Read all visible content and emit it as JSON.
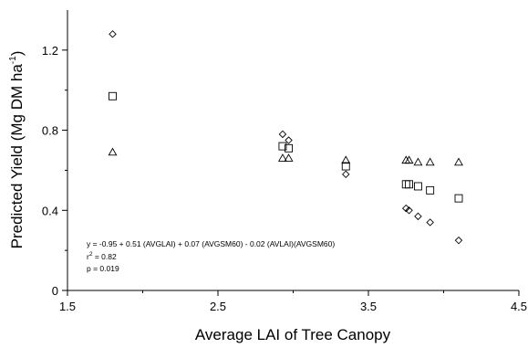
{
  "chart_data": {
    "type": "scatter",
    "title": "",
    "xlabel": "Average LAI of Tree Canopy",
    "ylabel_main": "Predicted Yield (Mg DM ha",
    "ylabel_sup": "-1",
    "ylabel_end": ")",
    "xlim": [
      1.5,
      4.5
    ],
    "ylim": [
      0,
      1.4
    ],
    "xticks": [
      1.5,
      2.5,
      3.5,
      4.5
    ],
    "xtick_labels": [
      "1.5",
      "2.5",
      "3.5",
      "4.5"
    ],
    "xminor": [
      2.0,
      3.0,
      4.0
    ],
    "yticks": [
      0,
      0.4,
      0.8,
      1.2
    ],
    "ytick_labels": [
      "0",
      "0.4",
      "0.8",
      "1.2"
    ],
    "yminor": [
      0.2,
      0.6,
      1.0
    ],
    "grid": false,
    "legend": "none",
    "series": [
      {
        "marker": "diamond",
        "points": [
          {
            "x": 1.8,
            "y": 1.28
          },
          {
            "x": 2.93,
            "y": 0.78
          },
          {
            "x": 2.97,
            "y": 0.75
          },
          {
            "x": 3.35,
            "y": 0.58
          },
          {
            "x": 3.75,
            "y": 0.41
          },
          {
            "x": 3.77,
            "y": 0.4
          },
          {
            "x": 3.83,
            "y": 0.37
          },
          {
            "x": 3.91,
            "y": 0.34
          },
          {
            "x": 4.1,
            "y": 0.25
          }
        ]
      },
      {
        "marker": "square",
        "points": [
          {
            "x": 1.8,
            "y": 0.97
          },
          {
            "x": 2.93,
            "y": 0.72
          },
          {
            "x": 2.97,
            "y": 0.71
          },
          {
            "x": 3.35,
            "y": 0.62
          },
          {
            "x": 3.75,
            "y": 0.53
          },
          {
            "x": 3.77,
            "y": 0.53
          },
          {
            "x": 3.83,
            "y": 0.52
          },
          {
            "x": 3.91,
            "y": 0.5
          },
          {
            "x": 4.1,
            "y": 0.46
          }
        ]
      },
      {
        "marker": "triangle",
        "points": [
          {
            "x": 1.8,
            "y": 0.69
          },
          {
            "x": 2.93,
            "y": 0.66
          },
          {
            "x": 2.97,
            "y": 0.66
          },
          {
            "x": 3.35,
            "y": 0.65
          },
          {
            "x": 3.75,
            "y": 0.65
          },
          {
            "x": 3.77,
            "y": 0.65
          },
          {
            "x": 3.83,
            "y": 0.64
          },
          {
            "x": 3.91,
            "y": 0.64
          },
          {
            "x": 4.1,
            "y": 0.64
          }
        ]
      }
    ],
    "annotations": {
      "equation": "y = -0.95 + 0.51 (AVGLAI) + 0.07 (AVGSM60) - 0.02 (AVLAI)(AVGSM60)",
      "r2_prefix": "r",
      "r2_sup": "2",
      "r2_value": " = 0.82",
      "p_value": "p = 0.019"
    }
  }
}
